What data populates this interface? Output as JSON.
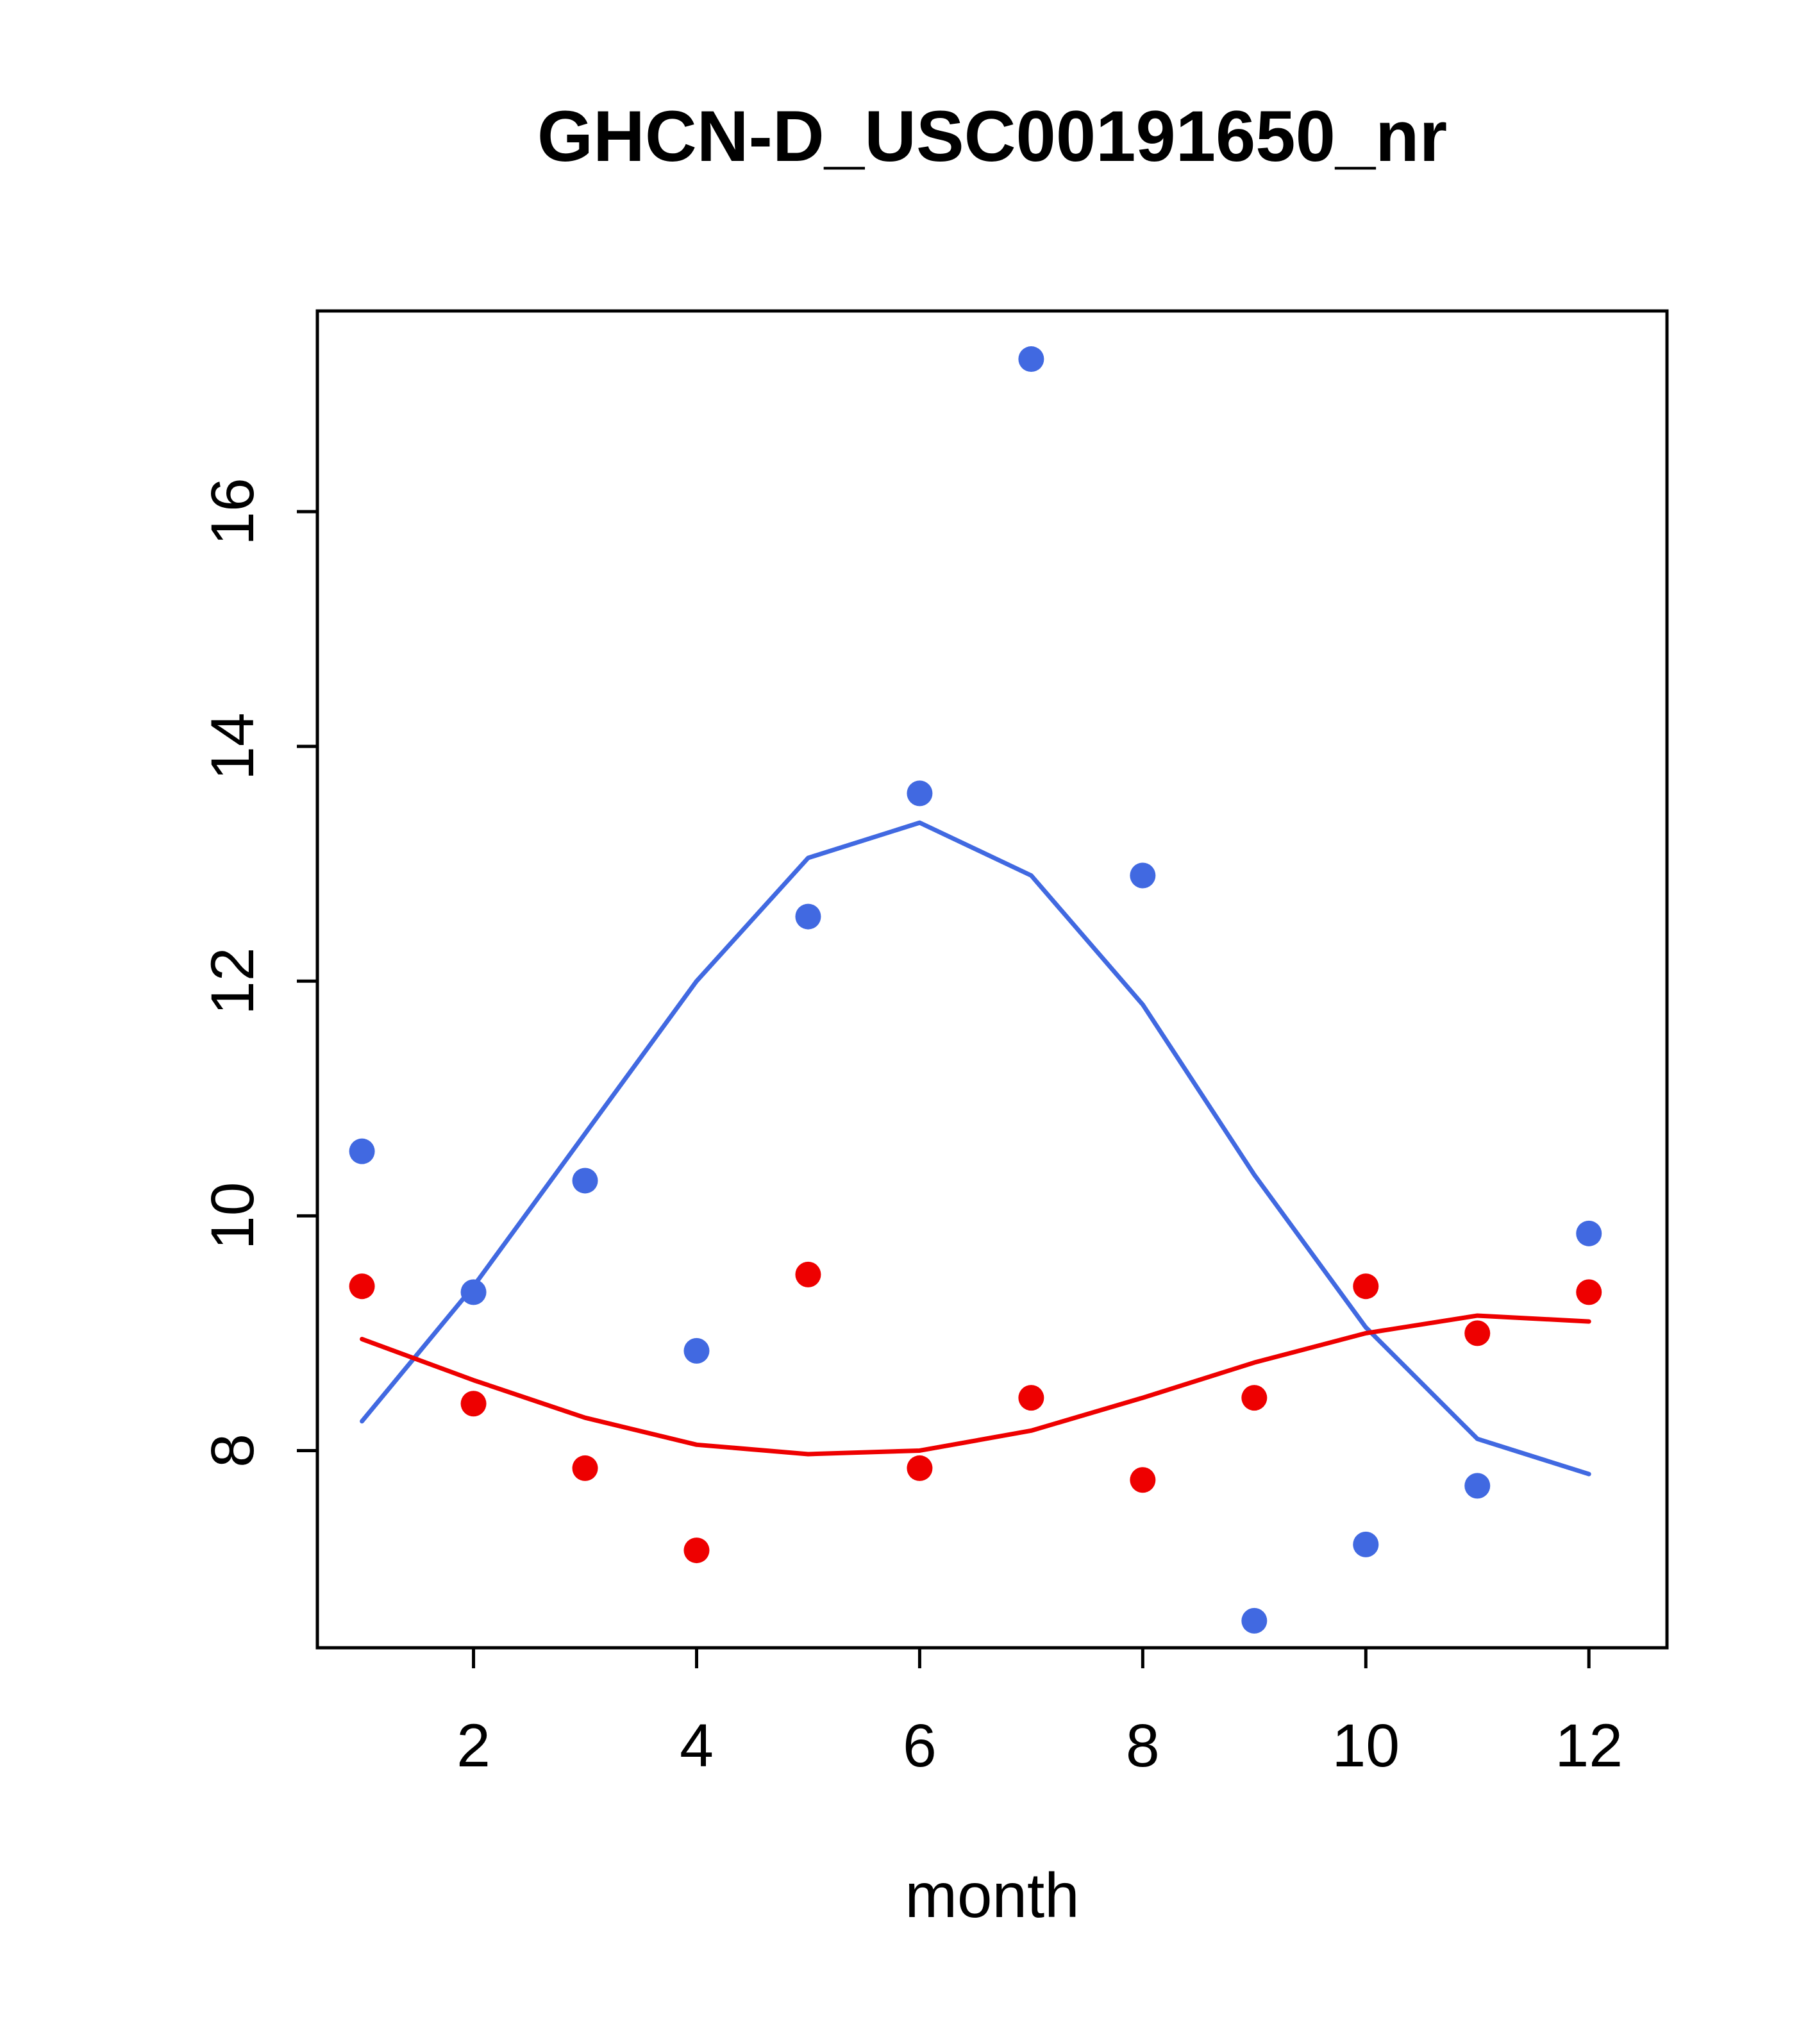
{
  "chart_data": {
    "type": "scatter",
    "title": "GHCN-D_USC00191650_nr",
    "xlabel": "month",
    "ylabel": "",
    "x": [
      1,
      2,
      3,
      4,
      5,
      6,
      7,
      8,
      9,
      10,
      11,
      12
    ],
    "series": [
      {
        "name": "blue-points",
        "kind": "points",
        "color": "#4169E1",
        "values": [
          10.55,
          9.35,
          10.3,
          8.85,
          12.55,
          13.6,
          17.3,
          12.9,
          6.55,
          7.2,
          7.7,
          9.85
        ]
      },
      {
        "name": "red-points",
        "kind": "points",
        "color": "#EE0000",
        "values": [
          9.4,
          8.4,
          7.85,
          7.15,
          9.5,
          7.85,
          8.45,
          7.75,
          8.45,
          9.4,
          9.0,
          9.35
        ]
      },
      {
        "name": "blue-smooth",
        "kind": "line",
        "color": "#4169E1",
        "values": [
          8.25,
          9.4,
          10.7,
          12.0,
          13.05,
          13.35,
          12.9,
          11.8,
          10.35,
          9.05,
          8.1,
          7.8
        ]
      },
      {
        "name": "red-smooth",
        "kind": "line",
        "color": "#EE0000",
        "values": [
          8.95,
          8.6,
          8.28,
          8.05,
          7.97,
          8.0,
          8.17,
          8.45,
          8.75,
          9.0,
          9.15,
          9.1
        ]
      }
    ],
    "xticks": [
      2,
      4,
      6,
      8,
      10,
      12
    ],
    "yticks": [
      8,
      10,
      12,
      14,
      16
    ],
    "xlim": [
      0.6,
      12.7
    ],
    "ylim": [
      6.32,
      17.71
    ],
    "grid": false,
    "legend": "none",
    "axis_color": "#000000"
  }
}
